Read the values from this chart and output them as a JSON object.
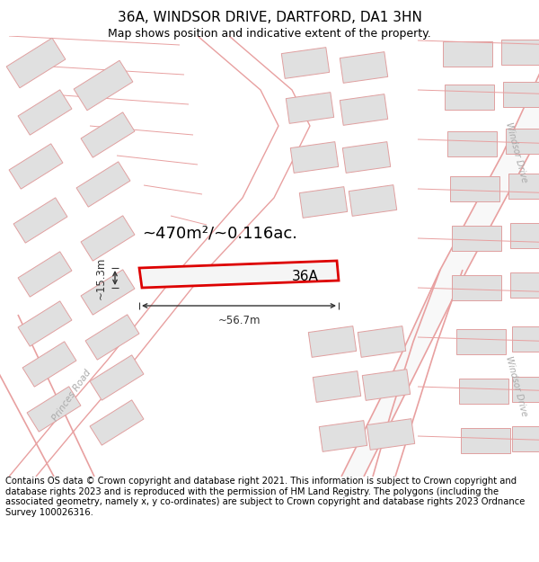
{
  "title": "36A, WINDSOR DRIVE, DARTFORD, DA1 3HN",
  "subtitle": "Map shows position and indicative extent of the property.",
  "footer": "Contains OS data © Crown copyright and database right 2021. This information is subject to Crown copyright and database rights 2023 and is reproduced with the permission of HM Land Registry. The polygons (including the associated geometry, namely x, y co-ordinates) are subject to Crown copyright and database rights 2023 Ordnance Survey 100026316.",
  "area_label": "~470m²/~0.116ac.",
  "plot_label": "36A",
  "dim_width": "~56.7m",
  "dim_height": "~15.3m",
  "background_color": "#ffffff",
  "map_bg_color": "#ffffff",
  "plot_fill": "#f5f5f5",
  "plot_stroke": "#dd0000",
  "road_line_color": "#e8a0a0",
  "road_label_color": "#aaaaaa",
  "building_fill": "#e0e0e0",
  "building_stroke": "#e0a0a0",
  "parcel_line_color": "#f0b0b0",
  "title_fontsize": 11,
  "subtitle_fontsize": 9,
  "footer_fontsize": 7.2
}
